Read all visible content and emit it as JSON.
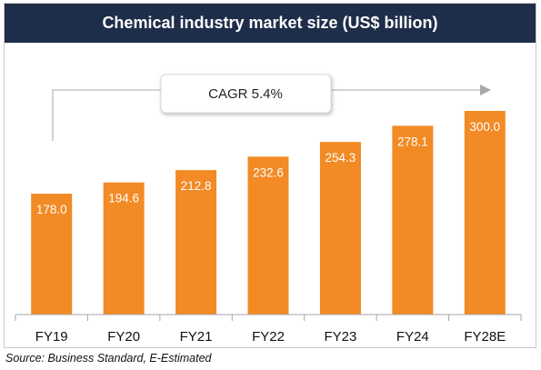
{
  "chart_data": {
    "type": "bar",
    "title": "Chemical industry market size (US$ billion)",
    "categories": [
      "FY19",
      "FY20",
      "FY21",
      "FY22",
      "FY23",
      "FY24",
      "FY28E"
    ],
    "values": [
      178.0,
      194.6,
      212.8,
      232.6,
      254.3,
      278.1,
      300.0
    ],
    "value_labels": [
      "178.0",
      "194.6",
      "212.8",
      "232.6",
      "254.3",
      "278.1",
      "300.0"
    ],
    "annotation": "CAGR 5.4%",
    "ylim": [
      0,
      330
    ],
    "grid": false,
    "legend": "none",
    "bar_color": "#f28a25",
    "source": "Source: Business Standard, E-Estimated"
  },
  "colors": {
    "header_bg": "#1e2d49",
    "header_text": "#ffffff",
    "bar": "#f28a25",
    "axis": "#a6a6a6"
  }
}
